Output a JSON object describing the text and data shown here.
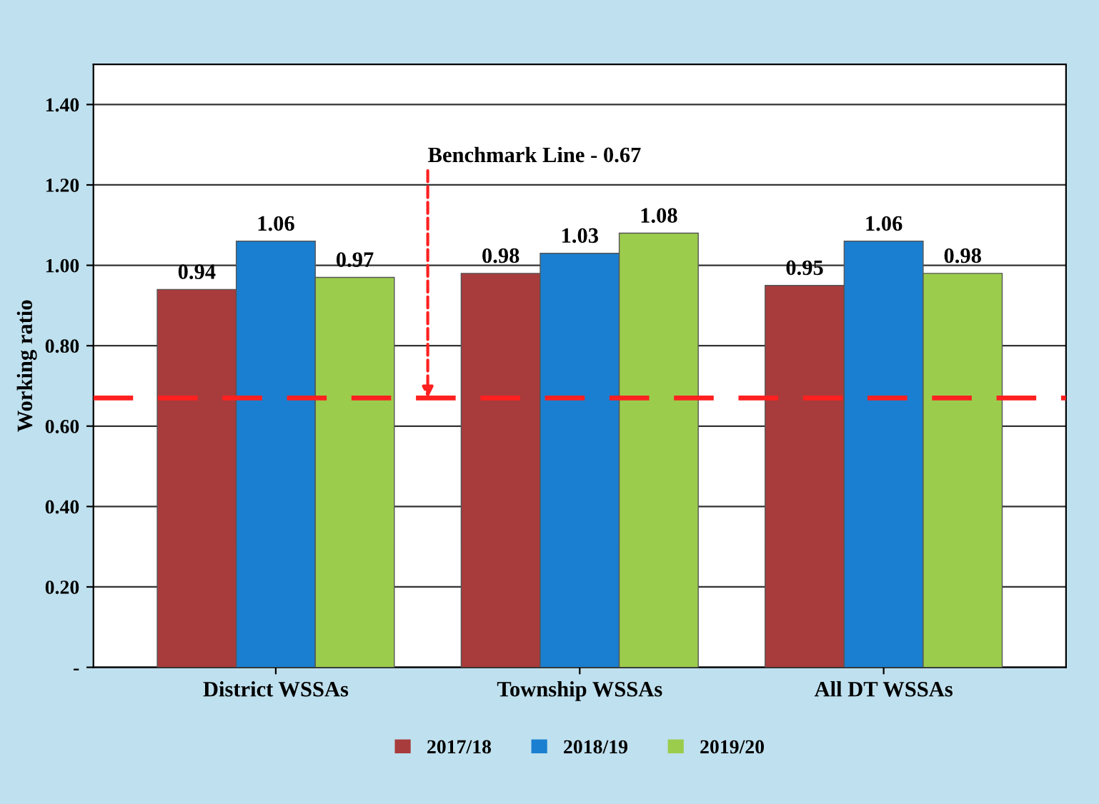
{
  "chart_data": {
    "type": "bar",
    "ylabel": "Working ratio",
    "categories": [
      "District WSSAs",
      "Township WSSAs",
      "All DT WSSAs"
    ],
    "series": [
      {
        "name": "2017/18",
        "color": "#a83c3c",
        "values": [
          0.94,
          0.98,
          0.95
        ]
      },
      {
        "name": "2018/19",
        "color": "#1a7fd0",
        "values": [
          1.06,
          1.03,
          1.06
        ]
      },
      {
        "name": "2019/20",
        "color": "#9ccc4c",
        "values": [
          0.97,
          1.08,
          0.98
        ]
      }
    ],
    "data_labels": true,
    "ylim": [
      0,
      1.5
    ],
    "yticks": [
      {
        "value": 0,
        "label": "-"
      },
      {
        "value": 0.2,
        "label": "0.20"
      },
      {
        "value": 0.4,
        "label": "0.40"
      },
      {
        "value": 0.6,
        "label": "0.60"
      },
      {
        "value": 0.8,
        "label": "0.80"
      },
      {
        "value": 1.0,
        "label": "1.00"
      },
      {
        "value": 1.2,
        "label": "1.20"
      },
      {
        "value": 1.4,
        "label": "1.40"
      }
    ],
    "ref_lines": [
      {
        "axis": "y",
        "value": 0.67,
        "label": "Benchmark Line - 0.67",
        "color": "#ff2020",
        "line_style": "dashed"
      }
    ],
    "grid": "y",
    "legend": "bottom"
  }
}
